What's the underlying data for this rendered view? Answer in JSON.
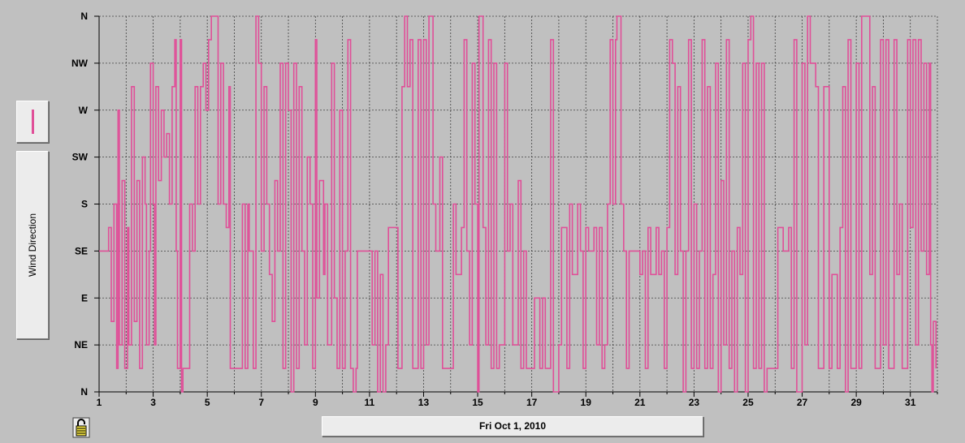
{
  "legend": {
    "series_label": "Wind Direction",
    "swatch_color": "#e04f98"
  },
  "date_label": "Fri Oct 1, 2010",
  "chart_data": {
    "type": "line",
    "series": [
      {
        "name": "Wind Direction",
        "color": "#e04f98",
        "points": [
          [
            1.0,
            135
          ],
          [
            1.3,
            135
          ],
          [
            1.35,
            157.5
          ],
          [
            1.45,
            67.5
          ],
          [
            1.55,
            180
          ],
          [
            1.65,
            22.5
          ],
          [
            1.7,
            270
          ],
          [
            1.75,
            45
          ],
          [
            1.85,
            202.5
          ],
          [
            1.95,
            22.5
          ],
          [
            2.05,
            157.5
          ],
          [
            2.1,
            45
          ],
          [
            2.2,
            292.5
          ],
          [
            2.3,
            67.5
          ],
          [
            2.4,
            202.5
          ],
          [
            2.5,
            22.5
          ],
          [
            2.6,
            225
          ],
          [
            2.7,
            180
          ],
          [
            2.75,
            45
          ],
          [
            2.85,
            135
          ],
          [
            2.9,
            315
          ],
          [
            3.0,
            180
          ],
          [
            3.05,
            45
          ],
          [
            3.1,
            292.5
          ],
          [
            3.2,
            202.5
          ],
          [
            3.3,
            270
          ],
          [
            3.4,
            225
          ],
          [
            3.5,
            247.5
          ],
          [
            3.6,
            180
          ],
          [
            3.7,
            292.5
          ],
          [
            3.8,
            337.5
          ],
          [
            3.85,
            135
          ],
          [
            3.9,
            22.5
          ],
          [
            4.0,
            337.5
          ],
          [
            4.05,
            0
          ],
          [
            4.1,
            22.5
          ],
          [
            4.3,
            22.5
          ],
          [
            4.35,
            180
          ],
          [
            4.45,
            135
          ],
          [
            4.55,
            292.5
          ],
          [
            4.65,
            180
          ],
          [
            4.75,
            292.5
          ],
          [
            4.85,
            315
          ],
          [
            4.95,
            270
          ],
          [
            5.05,
            337.5
          ],
          [
            5.15,
            360
          ],
          [
            5.35,
            360
          ],
          [
            5.4,
            180
          ],
          [
            5.5,
            315
          ],
          [
            5.6,
            180
          ],
          [
            5.7,
            157.5
          ],
          [
            5.8,
            292.5
          ],
          [
            5.85,
            22.5
          ],
          [
            6.2,
            22.5
          ],
          [
            6.3,
            180
          ],
          [
            6.4,
            22.5
          ],
          [
            6.5,
            180
          ],
          [
            6.55,
            135
          ],
          [
            6.7,
            22.5
          ],
          [
            6.8,
            360
          ],
          [
            6.9,
            315
          ],
          [
            7.0,
            135
          ],
          [
            7.1,
            292.5
          ],
          [
            7.2,
            180
          ],
          [
            7.3,
            112.5
          ],
          [
            7.4,
            67.5
          ],
          [
            7.5,
            202.5
          ],
          [
            7.6,
            135
          ],
          [
            7.7,
            315
          ],
          [
            7.8,
            22.5
          ],
          [
            7.9,
            315
          ],
          [
            8.0,
            270
          ],
          [
            8.1,
            0
          ],
          [
            8.2,
            315
          ],
          [
            8.3,
            22.5
          ],
          [
            8.4,
            292.5
          ],
          [
            8.5,
            135
          ],
          [
            8.6,
            45
          ],
          [
            8.7,
            225
          ],
          [
            8.8,
            180
          ],
          [
            8.9,
            22.5
          ],
          [
            9.0,
            337.5
          ],
          [
            9.05,
            90
          ],
          [
            9.15,
            202.5
          ],
          [
            9.3,
            112.5
          ],
          [
            9.35,
            180
          ],
          [
            9.45,
            45
          ],
          [
            9.6,
            315
          ],
          [
            9.7,
            90
          ],
          [
            9.8,
            22.5
          ],
          [
            9.9,
            270
          ],
          [
            10.0,
            22.5
          ],
          [
            10.1,
            135
          ],
          [
            10.2,
            337.5
          ],
          [
            10.3,
            22.5
          ],
          [
            10.4,
            0
          ],
          [
            10.5,
            22.5
          ],
          [
            10.55,
            135
          ],
          [
            11.0,
            135
          ],
          [
            11.1,
            45
          ],
          [
            11.2,
            135
          ],
          [
            11.3,
            0
          ],
          [
            11.4,
            112.5
          ],
          [
            11.5,
            0
          ],
          [
            11.6,
            45
          ],
          [
            11.7,
            157.5
          ],
          [
            12.0,
            157.5
          ],
          [
            12.05,
            22.5
          ],
          [
            12.2,
            292.5
          ],
          [
            12.3,
            360
          ],
          [
            12.4,
            292.5
          ],
          [
            12.5,
            337.5
          ],
          [
            12.6,
            22.5
          ],
          [
            12.8,
            337.5
          ],
          [
            12.9,
            22.5
          ],
          [
            13.0,
            337.5
          ],
          [
            13.1,
            45
          ],
          [
            13.2,
            360
          ],
          [
            13.35,
            180
          ],
          [
            13.45,
            135
          ],
          [
            13.6,
            225
          ],
          [
            13.7,
            22.5
          ],
          [
            14.0,
            22.5
          ],
          [
            14.1,
            180
          ],
          [
            14.2,
            112.5
          ],
          [
            14.4,
            157.5
          ],
          [
            14.5,
            337.5
          ],
          [
            14.6,
            135
          ],
          [
            14.7,
            45
          ],
          [
            14.8,
            315
          ],
          [
            14.9,
            180
          ],
          [
            15.0,
            0
          ],
          [
            15.05,
            360
          ],
          [
            15.2,
            157.5
          ],
          [
            15.3,
            45
          ],
          [
            15.4,
            337.5
          ],
          [
            15.5,
            22.5
          ],
          [
            15.6,
            315
          ],
          [
            15.7,
            22.5
          ],
          [
            15.8,
            45
          ],
          [
            16.0,
            315
          ],
          [
            16.1,
            135
          ],
          [
            16.2,
            180
          ],
          [
            16.3,
            45
          ],
          [
            16.5,
            202.5
          ],
          [
            16.6,
            22.5
          ],
          [
            16.7,
            135
          ],
          [
            16.8,
            22.5
          ],
          [
            17.0,
            22.5
          ],
          [
            17.1,
            90
          ],
          [
            17.3,
            22.5
          ],
          [
            17.4,
            90
          ],
          [
            17.5,
            22.5
          ],
          [
            17.7,
            337.5
          ],
          [
            17.8,
            0
          ],
          [
            18.0,
            45
          ],
          [
            18.1,
            157.5
          ],
          [
            18.3,
            22.5
          ],
          [
            18.4,
            180
          ],
          [
            18.5,
            112.5
          ],
          [
            18.7,
            180
          ],
          [
            18.8,
            135
          ],
          [
            18.9,
            22.5
          ],
          [
            19.0,
            157.5
          ],
          [
            19.1,
            135
          ],
          [
            19.3,
            157.5
          ],
          [
            19.4,
            45
          ],
          [
            19.5,
            157.5
          ],
          [
            19.6,
            22.5
          ],
          [
            19.7,
            45
          ],
          [
            19.8,
            180
          ],
          [
            19.9,
            337.5
          ],
          [
            20.0,
            180
          ],
          [
            20.1,
            337.5
          ],
          [
            20.15,
            360
          ],
          [
            20.3,
            180
          ],
          [
            20.4,
            135
          ],
          [
            20.5,
            22.5
          ],
          [
            20.6,
            135
          ],
          [
            21.0,
            112.5
          ],
          [
            21.1,
            135
          ],
          [
            21.2,
            22.5
          ],
          [
            21.3,
            157.5
          ],
          [
            21.4,
            112.5
          ],
          [
            21.6,
            157.5
          ],
          [
            21.7,
            112.5
          ],
          [
            21.8,
            135
          ],
          [
            21.9,
            22.5
          ],
          [
            22.0,
            157.5
          ],
          [
            22.1,
            337.5
          ],
          [
            22.2,
            315
          ],
          [
            22.3,
            112.5
          ],
          [
            22.4,
            292.5
          ],
          [
            22.5,
            135
          ],
          [
            22.6,
            0
          ],
          [
            22.7,
            135
          ],
          [
            22.8,
            337.5
          ],
          [
            22.9,
            22.5
          ],
          [
            23.0,
            180
          ],
          [
            23.1,
            22.5
          ],
          [
            23.2,
            135
          ],
          [
            23.3,
            337.5
          ],
          [
            23.4,
            22.5
          ],
          [
            23.5,
            292.5
          ],
          [
            23.6,
            22.5
          ],
          [
            23.7,
            112.5
          ],
          [
            23.8,
            315
          ],
          [
            23.9,
            0
          ],
          [
            24.0,
            202.5
          ],
          [
            24.1,
            45
          ],
          [
            24.2,
            337.5
          ],
          [
            24.3,
            22.5
          ],
          [
            24.4,
            135
          ],
          [
            24.5,
            0
          ],
          [
            24.6,
            157.5
          ],
          [
            24.7,
            112.5
          ],
          [
            24.8,
            315
          ],
          [
            24.9,
            0
          ],
          [
            25.0,
            337.5
          ],
          [
            25.1,
            360
          ],
          [
            25.2,
            22.5
          ],
          [
            25.3,
            315
          ],
          [
            25.4,
            22.5
          ],
          [
            25.5,
            315
          ],
          [
            25.6,
            0
          ],
          [
            25.7,
            22.5
          ],
          [
            26.0,
            22.5
          ],
          [
            26.1,
            157.5
          ],
          [
            26.3,
            135
          ],
          [
            26.5,
            157.5
          ],
          [
            26.6,
            22.5
          ],
          [
            26.7,
            337.5
          ],
          [
            26.8,
            0
          ],
          [
            27.0,
            315
          ],
          [
            27.1,
            45
          ],
          [
            27.2,
            360
          ],
          [
            27.3,
            315
          ],
          [
            27.5,
            292.5
          ],
          [
            27.6,
            22.5
          ],
          [
            27.8,
            292.5
          ],
          [
            28.0,
            22.5
          ],
          [
            28.1,
            112.5
          ],
          [
            28.3,
            22.5
          ],
          [
            28.4,
            157.5
          ],
          [
            28.5,
            292.5
          ],
          [
            28.6,
            0
          ],
          [
            28.7,
            337.5
          ],
          [
            28.8,
            22.5
          ],
          [
            29.0,
            315
          ],
          [
            29.1,
            22.5
          ],
          [
            29.2,
            360
          ],
          [
            29.4,
            360
          ],
          [
            29.5,
            112.5
          ],
          [
            29.6,
            292.5
          ],
          [
            29.7,
            22.5
          ],
          [
            29.9,
            337.5
          ],
          [
            30.0,
            45
          ],
          [
            30.1,
            337.5
          ],
          [
            30.2,
            22.5
          ],
          [
            30.4,
            337.5
          ],
          [
            30.5,
            112.5
          ],
          [
            30.6,
            180
          ],
          [
            30.7,
            22.5
          ],
          [
            30.9,
            337.5
          ],
          [
            31.0,
            157.5
          ],
          [
            31.1,
            337.5
          ],
          [
            31.2,
            45
          ],
          [
            31.3,
            337.5
          ],
          [
            31.4,
            135
          ],
          [
            31.5,
            315
          ],
          [
            31.6,
            112.5
          ],
          [
            31.7,
            315
          ],
          [
            31.75,
            45
          ],
          [
            31.8,
            0
          ],
          [
            31.85,
            67.5
          ],
          [
            31.95,
            22.5
          ]
        ]
      }
    ],
    "x_ticks": [
      1,
      3,
      5,
      7,
      9,
      11,
      13,
      15,
      17,
      19,
      21,
      23,
      25,
      27,
      29,
      31
    ],
    "x_range": [
      1,
      32
    ],
    "y_ticks": [
      {
        "value": 0,
        "label": "N"
      },
      {
        "value": 45,
        "label": "NE"
      },
      {
        "value": 90,
        "label": "E"
      },
      {
        "value": 135,
        "label": "SE"
      },
      {
        "value": 180,
        "label": "S"
      },
      {
        "value": 225,
        "label": "SW"
      },
      {
        "value": 270,
        "label": "W"
      },
      {
        "value": 315,
        "label": "NW"
      },
      {
        "value": 360,
        "label": "N"
      }
    ],
    "y_range": [
      0,
      360
    ],
    "grid": true
  }
}
